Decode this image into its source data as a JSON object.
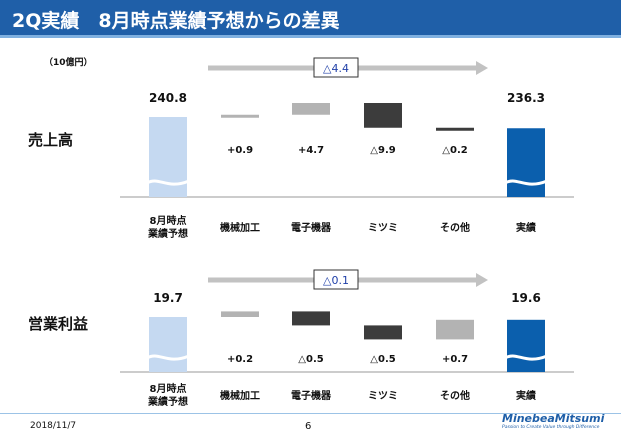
{
  "header": {
    "title": "2Q実績　8月時点業績予想からの差異"
  },
  "unit_label": "（10億円）",
  "colors": {
    "header_bg": "#1f5fa8",
    "forecast": "#c5d9f1",
    "actual": "#0b5fad",
    "positive": "#b3b3b3",
    "negative": "#3c3c3c",
    "arrow": "#c2c2c2",
    "box_text": "#1f3fa8"
  },
  "chart_data": [
    {
      "type": "bar",
      "subtype": "waterfall",
      "title": "売上高",
      "categories": [
        "8月時点\n業績予想",
        "機械加工",
        "電子機器",
        "ミツミ",
        "その他",
        "実績"
      ],
      "start_value": 240.8,
      "start_label": "240.8",
      "changes": [
        0.9,
        4.7,
        -9.9,
        -0.2
      ],
      "change_labels": [
        "+0.9",
        "+4.7",
        "△9.9",
        "△0.2"
      ],
      "end_value": 236.3,
      "end_label": "236.3",
      "total_change_label": "△4.4",
      "axis_break": true
    },
    {
      "type": "bar",
      "subtype": "waterfall",
      "title": "営業利益",
      "categories": [
        "8月時点\n業績予想",
        "機械加工",
        "電子機器",
        "ミツミ",
        "その他",
        "実績"
      ],
      "start_value": 19.7,
      "start_label": "19.7",
      "changes": [
        0.2,
        -0.5,
        -0.5,
        0.7
      ],
      "change_labels": [
        "+0.2",
        "△0.5",
        "△0.5",
        "+0.7"
      ],
      "end_value": 19.6,
      "end_label": "19.6",
      "total_change_label": "△0.1",
      "axis_break": true
    }
  ],
  "footer": {
    "date": "2018/11/7",
    "page": "6",
    "brand": "MinebeaMitsumi",
    "tagline": "Passion to Create Value through Difference"
  }
}
